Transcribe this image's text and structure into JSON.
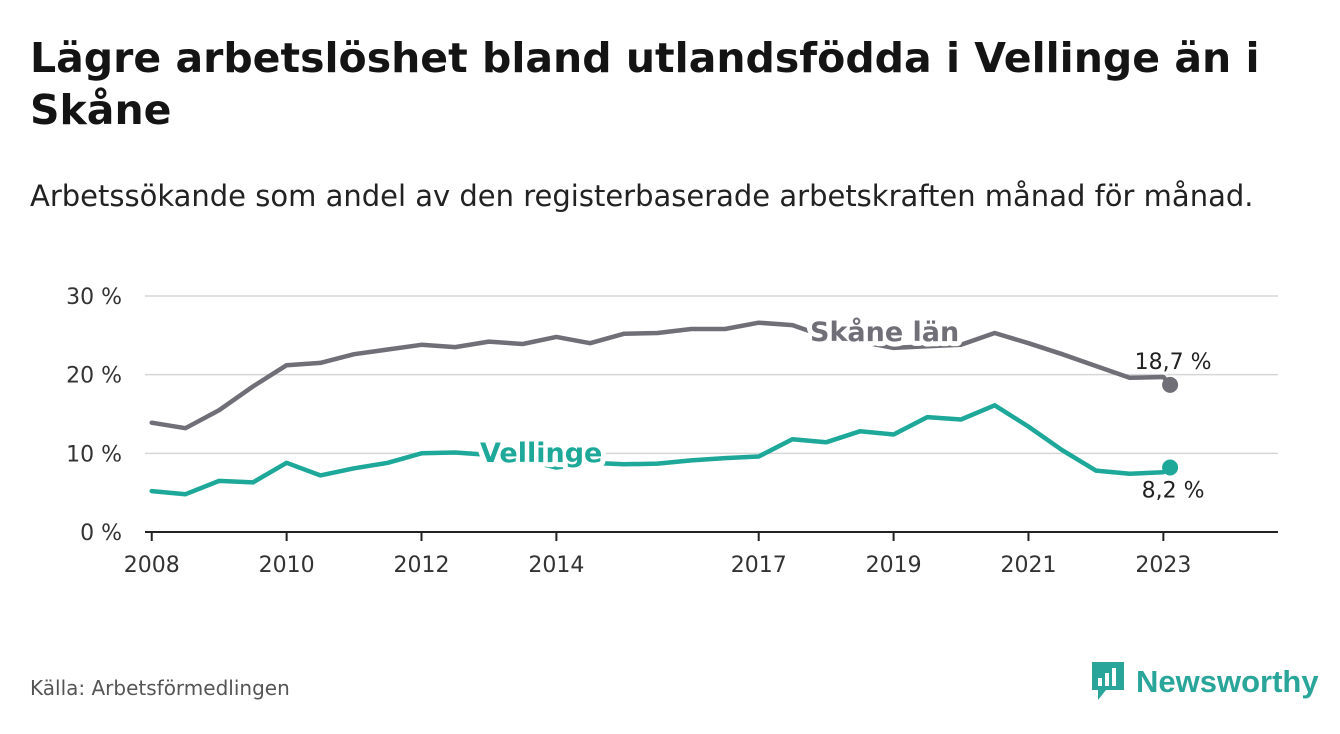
{
  "header": {
    "title": "Lägre arbetslöshet bland utlandsfödda i Vellinge än i Skåne",
    "subtitle": "Arbetssökande som andel av den registerbaserade arbetskraften månad för månad."
  },
  "footer": {
    "source": "Källa: Arbetsförmedlingen",
    "brand": "Newsworthy"
  },
  "colors": {
    "skane": "#706f78",
    "vellinge": "#1ea899",
    "grid": "#d6d6d6",
    "axis": "#222222",
    "brand": "#2aa59a"
  },
  "chart_data": {
    "type": "line",
    "title": "Lägre arbetslöshet bland utlandsfödda i Vellinge än i Skåne",
    "subtitle": "Arbetssökande som andel av den registerbaserade arbetskraften månad för månad.",
    "xlabel": "",
    "ylabel": "",
    "ylim": [
      0,
      30
    ],
    "xlim": [
      2007.9,
      2024.7
    ],
    "grid": true,
    "yticks": [
      {
        "value": 0,
        "label": "0 %"
      },
      {
        "value": 10,
        "label": "10 %"
      },
      {
        "value": 20,
        "label": "20 %"
      },
      {
        "value": 30,
        "label": "30 %"
      }
    ],
    "xticks": [
      {
        "value": 2008.0,
        "label": "2008"
      },
      {
        "value": 2010.0,
        "label": "2010"
      },
      {
        "value": 2012.0,
        "label": "2012"
      },
      {
        "value": 2014.0,
        "label": "2014"
      },
      {
        "value": 2017.0,
        "label": "2017"
      },
      {
        "value": 2019.0,
        "label": "2019"
      },
      {
        "value": 2021.0,
        "label": "2021"
      },
      {
        "value": 2023.0,
        "label": "2023"
      }
    ],
    "series": [
      {
        "name": "Skåne län",
        "label": "Skåne län",
        "end_label": "18,7 %",
        "end_value": 18.7,
        "x": [
          2008.0,
          2008.5,
          2009.0,
          2009.5,
          2010.0,
          2010.5,
          2011.0,
          2011.5,
          2012.0,
          2012.5,
          2013.0,
          2013.5,
          2014.0,
          2014.5,
          2015.0,
          2015.5,
          2016.0,
          2016.5,
          2017.0,
          2017.5,
          2018.0,
          2018.5,
          2019.0,
          2019.5,
          2020.0,
          2020.5,
          2021.0,
          2021.5,
          2022.0,
          2022.5,
          2023.0,
          2023.1
        ],
        "values": [
          13.9,
          13.2,
          15.5,
          18.5,
          21.2,
          21.5,
          22.6,
          23.2,
          23.8,
          23.5,
          24.2,
          23.9,
          24.8,
          24.0,
          25.2,
          25.3,
          25.8,
          25.8,
          26.6,
          26.3,
          24.8,
          24.2,
          23.4,
          23.6,
          23.8,
          25.3,
          24.0,
          22.6,
          21.1,
          19.6,
          19.7,
          18.7
        ]
      },
      {
        "name": "Vellinge",
        "label": "Vellinge",
        "end_label": "8,2 %",
        "end_value": 8.2,
        "x": [
          2008.0,
          2008.5,
          2009.0,
          2009.5,
          2010.0,
          2010.5,
          2011.0,
          2011.5,
          2012.0,
          2012.5,
          2013.0,
          2013.5,
          2014.0,
          2014.5,
          2015.0,
          2015.5,
          2016.0,
          2016.5,
          2017.0,
          2017.5,
          2018.0,
          2018.5,
          2019.0,
          2019.5,
          2020.0,
          2020.5,
          2021.0,
          2021.5,
          2022.0,
          2022.5,
          2023.0,
          2023.1
        ],
        "values": [
          5.2,
          4.8,
          6.5,
          6.3,
          8.8,
          7.2,
          8.1,
          8.8,
          10.0,
          10.1,
          9.8,
          9.2,
          8.2,
          8.8,
          8.6,
          8.7,
          9.1,
          9.4,
          9.6,
          11.8,
          11.4,
          12.8,
          12.4,
          14.6,
          14.3,
          16.1,
          13.4,
          10.4,
          7.8,
          7.4,
          7.6,
          8.2
        ]
      }
    ]
  }
}
